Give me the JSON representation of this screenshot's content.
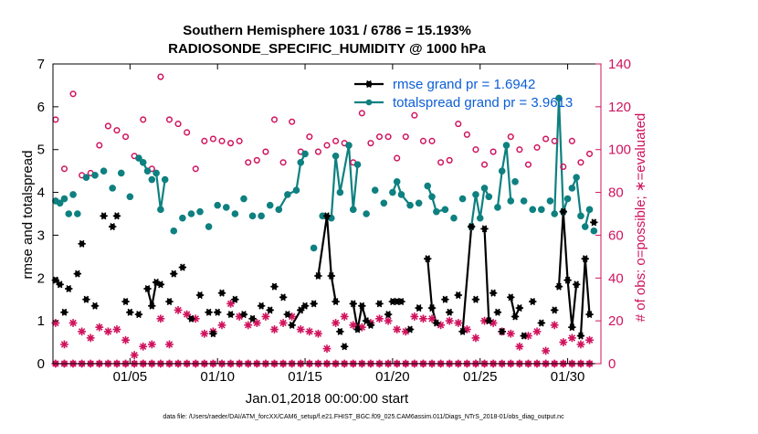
{
  "chart_data": {
    "type": "line",
    "title": "Southern Hemisphere 1031 / 6786 = 15.193%",
    "subtitle": "RADIOSONDE_SPECIFIC_HUMIDITY @ 1000 hPa",
    "xlabel": "Jan.01,2018 00:00:00 start",
    "ylabel_left": "rmse and totalspread",
    "ylabel_right": "# of obs: o=possible; ∗=evaluated",
    "footer": "data file: /Users/raeder/DAI/ATM_forcXX/CAM6_setup/f.e21.FHIST_BGC.f09_025.CAM6assim.011/Diags_NTrS_2018-01/obs_diag_output.nc",
    "xlim": [
      0.6,
      31.9
    ],
    "ylim_left": [
      0,
      7
    ],
    "ylim_right": [
      0,
      140
    ],
    "x_ticks": [
      5,
      10,
      15,
      20,
      25,
      30
    ],
    "x_tick_labels": [
      "01/05",
      "01/10",
      "01/15",
      "01/20",
      "01/25",
      "01/30"
    ],
    "y_ticks_left": [
      0,
      1,
      2,
      3,
      4,
      5,
      6,
      7
    ],
    "y_ticks_right": [
      0,
      20,
      40,
      60,
      80,
      100,
      120,
      140
    ],
    "colors": {
      "rmse": "#000000",
      "totalspread": "#0e8080",
      "obs": "#d0125d",
      "legend_text": "#0b5ed7"
    },
    "legend": [
      {
        "name": "rmse",
        "label": "rmse grand pr = 1.6942"
      },
      {
        "name": "totalspread",
        "label": "totalspread grand pr = 3.9613"
      }
    ],
    "series": [
      {
        "name": "rmse",
        "x": [
          0.75,
          1.0,
          1.25,
          1.5,
          2.0,
          2.25,
          2.5,
          3.0,
          3.5,
          4.0,
          4.25,
          4.75,
          5.0,
          5.5,
          6.0,
          6.25,
          6.5,
          6.75,
          7.25,
          7.5,
          8.0,
          8.5,
          9.0,
          9.5,
          9.75,
          10.0,
          10.25,
          10.75,
          11.0,
          11.5,
          12.0,
          12.5,
          13.0,
          13.25,
          13.75,
          14.0,
          14.25,
          14.75,
          15.0,
          15.5,
          15.75,
          16.25,
          16.5,
          16.75,
          17.0,
          17.25,
          17.75,
          18.0,
          18.25,
          18.5,
          18.75,
          19.25,
          19.75,
          20.0,
          20.25,
          20.5,
          21.0,
          21.5,
          22.0,
          22.25,
          22.5,
          23.0,
          23.25,
          23.75,
          24.0,
          24.5,
          24.75,
          25.25,
          25.5,
          25.75,
          26.0,
          26.25,
          26.75,
          27.0,
          27.25,
          27.5,
          28.0,
          28.5,
          29.25,
          29.5,
          29.75,
          30.0,
          30.25,
          30.5,
          30.75,
          31.0,
          31.25,
          31.5
        ],
        "values": [
          1.95,
          1.85,
          1.2,
          1.75,
          2.1,
          2.8,
          1.5,
          1.35,
          3.45,
          3.2,
          3.45,
          1.45,
          1.2,
          1.15,
          1.75,
          1.35,
          1.9,
          1.85,
          1.45,
          2.1,
          2.25,
          1.05,
          1.6,
          1.2,
          0.7,
          1.2,
          1.65,
          1.15,
          1.5,
          1.15,
          1.05,
          1.35,
          1.25,
          1.8,
          1.55,
          1.15,
          0.9,
          1.25,
          1.35,
          1.4,
          2.05,
          3.45,
          2.05,
          1.45,
          0.75,
          0.4,
          1.4,
          0.8,
          1.35,
          1.0,
          0.9,
          1.4,
          1.15,
          1.45,
          1.45,
          1.45,
          0.8,
          1.3,
          2.45,
          1.3,
          0.95,
          1.5,
          1.2,
          1.6,
          0.75,
          3.2,
          1.5,
          3.15,
          1.0,
          1.65,
          1.2,
          0.75,
          1.55,
          1.1,
          1.3,
          0.65,
          1.45,
          0.95,
          1.25,
          1.8,
          3.55,
          1.95,
          0.85,
          1.85,
          0.65,
          2.45,
          1.15,
          3.3
        ],
        "segments": [
          [
            5.75,
            6.5
          ],
          [
            14.25,
            15.0
          ],
          [
            15.75,
            16.75
          ],
          [
            17.5,
            18.5
          ],
          [
            22.0,
            22.5
          ],
          [
            24.0,
            24.5
          ],
          [
            25.0,
            25.5
          ],
          [
            26.75,
            27.25
          ],
          [
            29.5,
            30.5
          ],
          [
            30.75,
            31.25
          ]
        ]
      },
      {
        "name": "totalspread",
        "x": [
          0.75,
          1.0,
          1.25,
          1.5,
          1.75,
          2.0,
          2.5,
          3.0,
          3.5,
          4.0,
          4.5,
          5.0,
          5.5,
          5.75,
          6.0,
          6.25,
          6.5,
          6.75,
          7.0,
          7.5,
          8.0,
          8.5,
          9.0,
          9.5,
          10.0,
          10.5,
          11.0,
          11.5,
          12.0,
          12.5,
          13.0,
          13.5,
          14.0,
          14.5,
          14.75,
          15.0,
          15.5,
          16.0,
          16.5,
          16.75,
          17.0,
          17.5,
          17.75,
          18.0,
          18.5,
          19.0,
          19.5,
          20.0,
          20.25,
          20.5,
          21.0,
          21.5,
          22.0,
          22.25,
          22.5,
          23.0,
          23.5,
          24.0,
          24.5,
          24.75,
          25.0,
          25.25,
          25.5,
          26.0,
          26.25,
          26.5,
          26.75,
          27.0,
          27.5,
          28.0,
          28.5,
          29.0,
          29.25,
          29.5,
          29.75,
          30.0,
          30.25,
          30.5,
          30.75,
          31.0,
          31.25,
          31.5
        ],
        "values": [
          3.8,
          3.75,
          3.85,
          3.5,
          3.95,
          3.5,
          4.35,
          4.4,
          4.5,
          4.1,
          4.45,
          3.9,
          4.8,
          4.7,
          4.5,
          4.3,
          4.45,
          3.6,
          4.3,
          3.1,
          3.4,
          3.5,
          3.55,
          3.2,
          3.7,
          3.65,
          3.5,
          3.85,
          3.45,
          3.45,
          3.7,
          3.6,
          3.95,
          4.05,
          4.7,
          4.9,
          2.7,
          3.45,
          3.4,
          4.85,
          4.0,
          5.1,
          3.6,
          4.65,
          3.5,
          4.05,
          3.75,
          4.0,
          4.25,
          3.95,
          3.7,
          3.75,
          4.15,
          3.9,
          3.55,
          3.6,
          3.4,
          3.85,
          3.2,
          3.95,
          3.4,
          4.1,
          3.9,
          3.65,
          4.5,
          5.1,
          3.8,
          4.25,
          3.8,
          3.6,
          3.6,
          3.8,
          3.5,
          6.2,
          3.55,
          3.85,
          4.1,
          4.35,
          3.45,
          3.2,
          3.6,
          3.1
        ],
        "segments": [
          [
            5.5,
            6.0
          ],
          [
            6.5,
            7.0
          ],
          [
            13.5,
            15.0
          ],
          [
            16.0,
            17.5
          ],
          [
            17.5,
            18.0
          ],
          [
            20.0,
            21.0
          ],
          [
            22.0,
            23.0
          ],
          [
            24.5,
            25.5
          ],
          [
            26.0,
            26.75
          ],
          [
            29.25,
            30.0
          ],
          [
            30.25,
            30.75
          ],
          [
            31.0,
            31.25
          ]
        ]
      },
      {
        "name": "obs_possible",
        "x": [
          0.75,
          1.25,
          1.75,
          2.25,
          2.75,
          3.25,
          3.75,
          4.25,
          4.75,
          5.25,
          5.75,
          6.25,
          6.75,
          7.25,
          7.75,
          8.25,
          8.75,
          9.25,
          9.75,
          10.25,
          10.75,
          11.25,
          11.75,
          12.25,
          12.75,
          13.25,
          13.75,
          14.25,
          14.75,
          15.25,
          15.75,
          16.25,
          16.75,
          17.25,
          17.75,
          18.25,
          18.75,
          19.25,
          19.75,
          20.25,
          20.75,
          21.25,
          21.75,
          22.25,
          22.75,
          23.25,
          23.75,
          24.25,
          24.75,
          25.25,
          25.75,
          26.25,
          26.75,
          27.25,
          27.75,
          28.25,
          28.75,
          29.25,
          29.75,
          30.25,
          30.75,
          31.25
        ],
        "values": [
          114,
          91,
          126,
          88,
          89,
          102,
          111,
          109,
          106,
          97,
          114,
          91,
          134,
          114,
          112,
          108,
          91,
          104,
          105,
          104,
          103,
          104,
          94,
          95,
          99,
          114,
          94,
          113,
          99,
          106,
          99,
          102,
          104,
          103,
          94,
          117,
          103,
          106,
          106,
          96,
          106,
          116,
          104,
          104,
          94,
          95,
          112,
          107,
          100,
          93,
          99,
          90,
          106,
          100,
          93,
          101,
          105,
          104,
          92,
          104,
          94,
          98
        ]
      },
      {
        "name": "obs_evaluated",
        "x": [
          0.75,
          1.25,
          1.75,
          2.25,
          2.75,
          3.25,
          3.75,
          4.25,
          4.75,
          5.25,
          5.75,
          6.25,
          6.75,
          7.25,
          7.75,
          8.25,
          8.75,
          9.25,
          9.75,
          10.25,
          10.75,
          11.25,
          11.75,
          12.25,
          12.75,
          13.25,
          13.75,
          14.25,
          14.75,
          15.25,
          15.75,
          16.25,
          16.75,
          17.25,
          17.75,
          18.25,
          18.75,
          19.25,
          19.75,
          20.25,
          20.75,
          21.25,
          21.75,
          22.25,
          22.75,
          23.25,
          23.75,
          24.25,
          24.75,
          25.25,
          25.75,
          26.25,
          26.75,
          27.25,
          27.75,
          28.25,
          28.75,
          29.25,
          29.75,
          30.25,
          30.75,
          31.25
        ],
        "values": [
          19,
          9,
          19,
          15,
          12,
          17,
          15,
          16,
          11,
          4,
          8,
          9,
          21,
          9,
          25,
          23,
          21,
          14,
          15,
          18,
          28,
          22,
          18,
          19,
          22,
          16,
          19,
          22,
          16,
          15,
          14,
          7,
          19,
          22,
          18,
          17,
          19,
          21,
          20,
          16,
          15,
          22,
          21,
          21,
          18,
          20,
          19,
          16,
          12,
          20,
          19,
          15,
          14,
          8,
          13,
          15,
          6,
          18,
          10,
          12,
          9,
          11
        ]
      },
      {
        "name": "obs_zero_markers",
        "x": [
          0.75,
          1.25,
          1.75,
          2.25,
          2.75,
          3.25,
          3.75,
          4.25,
          4.75,
          5.25,
          5.75,
          6.25,
          6.75,
          7.25,
          7.75,
          8.25,
          8.75,
          9.25,
          9.75,
          10.25,
          10.75,
          11.25,
          11.75,
          12.25,
          12.75,
          13.25,
          13.75,
          14.25,
          14.75,
          15.25,
          15.75,
          16.25,
          16.75,
          17.25,
          17.75,
          18.25,
          18.75,
          19.25,
          19.75,
          20.25,
          20.75,
          21.25,
          21.75,
          22.25,
          22.75,
          23.25,
          23.75,
          24.25,
          24.75,
          25.25,
          25.75,
          26.25,
          26.75,
          27.25,
          27.75,
          28.25,
          28.75,
          29.25,
          29.75,
          30.25,
          30.75,
          31.25
        ],
        "values": [
          0,
          0,
          0,
          0,
          0,
          0,
          0,
          0,
          0,
          0,
          0,
          0,
          0,
          0,
          0,
          0,
          0,
          0,
          0,
          0,
          0,
          0,
          0,
          0,
          0,
          0,
          0,
          0,
          0,
          0,
          0,
          0,
          0,
          0,
          0,
          0,
          0,
          0,
          0,
          0,
          0,
          0,
          0,
          0,
          0,
          0,
          0,
          0,
          0,
          0,
          0,
          0,
          0,
          0,
          0,
          0,
          0,
          0,
          0,
          0,
          0,
          0
        ]
      }
    ]
  }
}
